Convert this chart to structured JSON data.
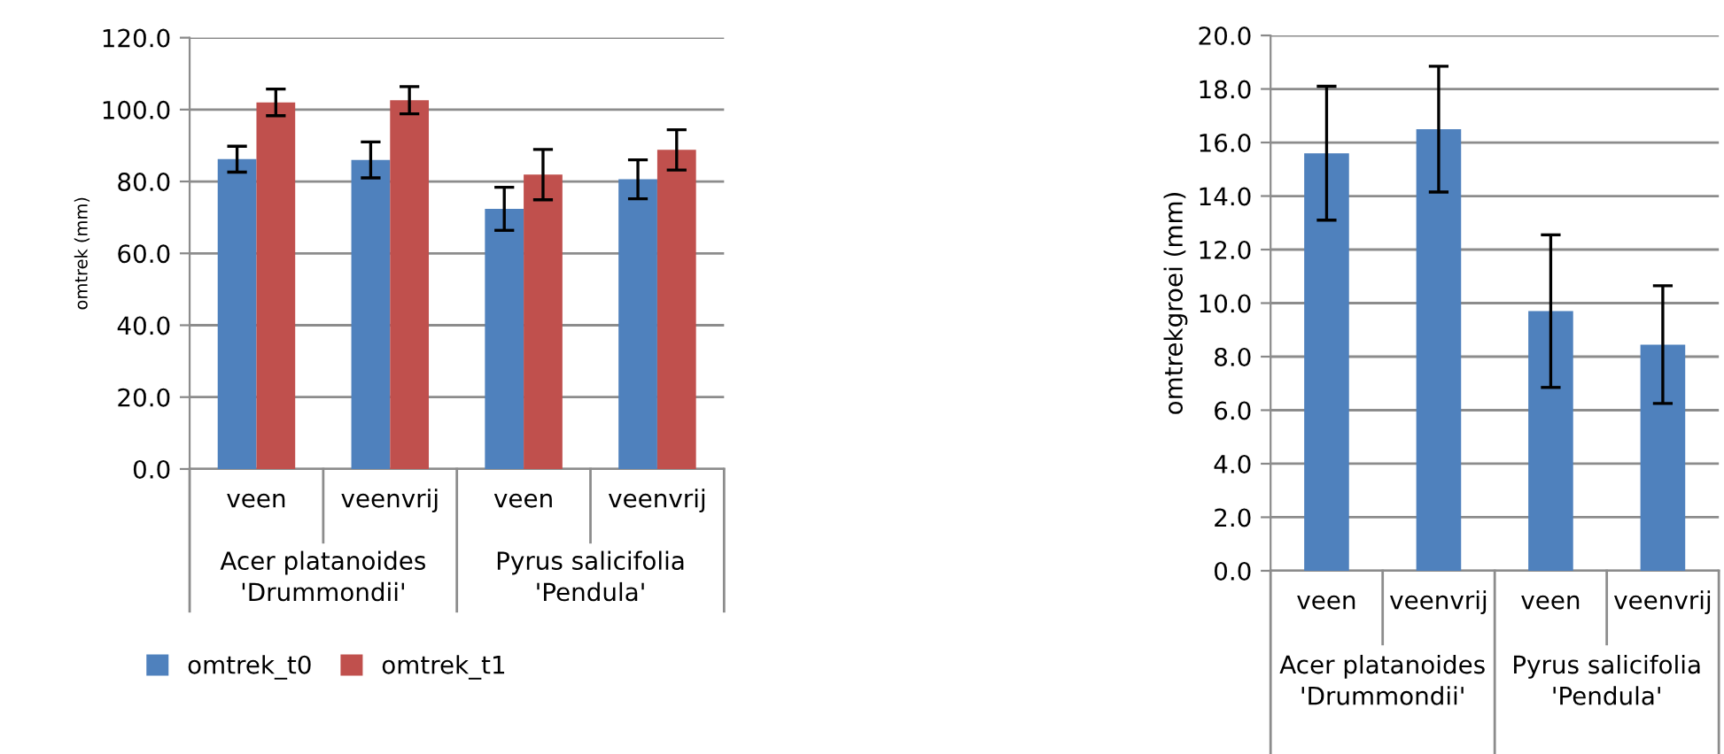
{
  "chart_data": [
    {
      "type": "bar",
      "ylabel": "omtrek (mm)",
      "categories": [
        "veen",
        "veenvrij",
        "veen",
        "veenvrij"
      ],
      "series": [
        {
          "name": "omtrek_t0",
          "color": "#4f81bd",
          "values": [
            86.2,
            86.0,
            72.4,
            80.6
          ],
          "errors": [
            3.6,
            5.0,
            6.0,
            5.4
          ]
        },
        {
          "name": "omtrek_t1",
          "color": "#c0504d",
          "values": [
            102.0,
            102.6,
            81.9,
            88.8
          ],
          "errors": [
            3.7,
            3.8,
            7.0,
            5.6
          ]
        }
      ],
      "annotations": [
        "Acer platanoides 'Drummondii'",
        "Pyrus salicifolia 'Pendula'"
      ],
      "ylim": [
        0,
        120
      ],
      "yticks": [
        {
          "value": 0,
          "label": "0.0"
        },
        {
          "value": 20,
          "label": "20.0"
        },
        {
          "value": 40,
          "label": "40.0"
        },
        {
          "value": 60,
          "label": "60.0"
        },
        {
          "value": 80,
          "label": "80.0"
        },
        {
          "value": 100,
          "label": "100.0"
        },
        {
          "value": 120,
          "label": "120.0"
        }
      ],
      "grid": "y",
      "legend": "bottom left"
    },
    {
      "type": "bar",
      "ylabel": "omtrekgroei (mm)",
      "categories": [
        "veen",
        "veenvrij",
        "veen",
        "veenvrij"
      ],
      "series": [
        {
          "color": "#4f81bd",
          "values": [
            15.6,
            16.5,
            9.7,
            8.45
          ],
          "errors": [
            2.5,
            2.35,
            2.85,
            2.2
          ]
        }
      ],
      "annotations": [
        "Acer platanoides 'Drummondii'",
        "Pyrus salicifolia 'Pendula'"
      ],
      "ylim": [
        0,
        20
      ],
      "yticks": [
        {
          "value": 0,
          "label": "0.0"
        },
        {
          "value": 2,
          "label": "2.0"
        },
        {
          "value": 4,
          "label": "4.0"
        },
        {
          "value": 6,
          "label": "6.0"
        },
        {
          "value": 8,
          "label": "8.0"
        },
        {
          "value": 10,
          "label": "10.0"
        },
        {
          "value": 12,
          "label": "12.0"
        },
        {
          "value": 14,
          "label": "14.0"
        },
        {
          "value": 16,
          "label": "16.0"
        },
        {
          "value": 18,
          "label": "18.0"
        },
        {
          "value": 20,
          "label": "20.0"
        }
      ],
      "grid": "y"
    }
  ]
}
